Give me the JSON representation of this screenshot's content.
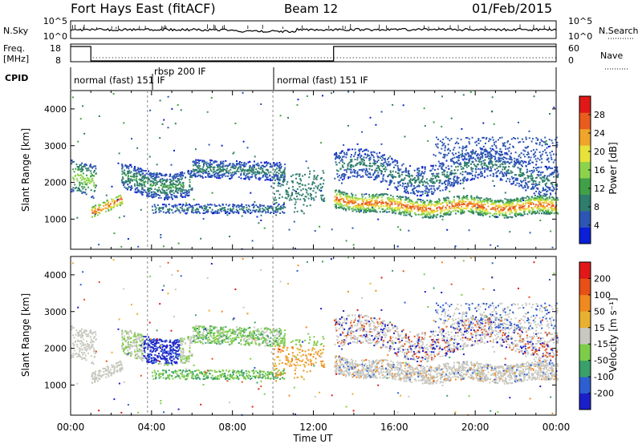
{
  "header": {
    "title": "Fort Hays East (fitACF)",
    "beam": "Beam 12",
    "date": "01/Feb/2015"
  },
  "noise_panel": {
    "left_label": "N.Sky",
    "right_label": "N.Search",
    "ticks_left": [
      "10^5",
      "10^0"
    ],
    "ticks_right": [
      "10^5",
      "10^0"
    ]
  },
  "freq_panel": {
    "left_label_1": "Freq.",
    "left_label_2": "[MHz]",
    "right_label": "Nave",
    "ticks_left": [
      "18",
      "8"
    ],
    "ticks_right": [
      "60",
      "0"
    ],
    "freq_level": [
      18,
      8,
      18
    ],
    "freq_segments_hours": [
      [
        0,
        1.0
      ],
      [
        1.0,
        13.0
      ],
      [
        13.0,
        24
      ]
    ]
  },
  "cpid": {
    "label": "CPID",
    "segments": [
      {
        "text": "normal (fast) 151 IF",
        "start": 0,
        "end": 10.0
      },
      {
        "text": "rbsp 200 IF",
        "start": 3.8,
        "end": 4.0
      },
      {
        "text": "normal (fast) 151 IF",
        "start": 10.0,
        "end": 24
      }
    ]
  },
  "chart_data": [
    {
      "type": "heatmap",
      "name": "Power",
      "xlabel": "",
      "ylabel": "Slant Range [km]",
      "xlim": [
        0,
        24
      ],
      "ylim": [
        180,
        4500
      ],
      "yticks": [
        1000,
        2000,
        3000,
        4000
      ],
      "colorbar": {
        "label": "Power [dB]",
        "ticks": [
          "28",
          "24",
          "20",
          "16",
          "12",
          "8",
          "4"
        ],
        "colors": [
          "#0a1fd6",
          "#2d56b4",
          "#2f7d6c",
          "#40a048",
          "#8cd34c",
          "#e6e23a",
          "#f0a52a",
          "#ea5c1e",
          "#e01818"
        ]
      }
    },
    {
      "type": "heatmap",
      "name": "Velocity",
      "xlabel": "Time UT",
      "ylabel": "Slant Range [km]",
      "xlim": [
        0,
        24
      ],
      "ylim": [
        180,
        4500
      ],
      "yticks": [
        1000,
        2000,
        3000,
        4000
      ],
      "xticks": [
        "00:00",
        "04:00",
        "08:00",
        "12:00",
        "16:00",
        "20:00",
        "00:00"
      ],
      "colorbar": {
        "label": "Velocity [m s⁻¹]",
        "ticks": [
          "200",
          "100",
          "50",
          "15",
          "-15",
          "-50",
          "-100",
          "-200"
        ],
        "colors": [
          "#1a1fc8",
          "#2d5fd0",
          "#3aa06a",
          "#7ccc48",
          "#c8c8c0",
          "#e8b030",
          "#f08a20",
          "#e85018",
          "#e01818"
        ]
      }
    }
  ]
}
